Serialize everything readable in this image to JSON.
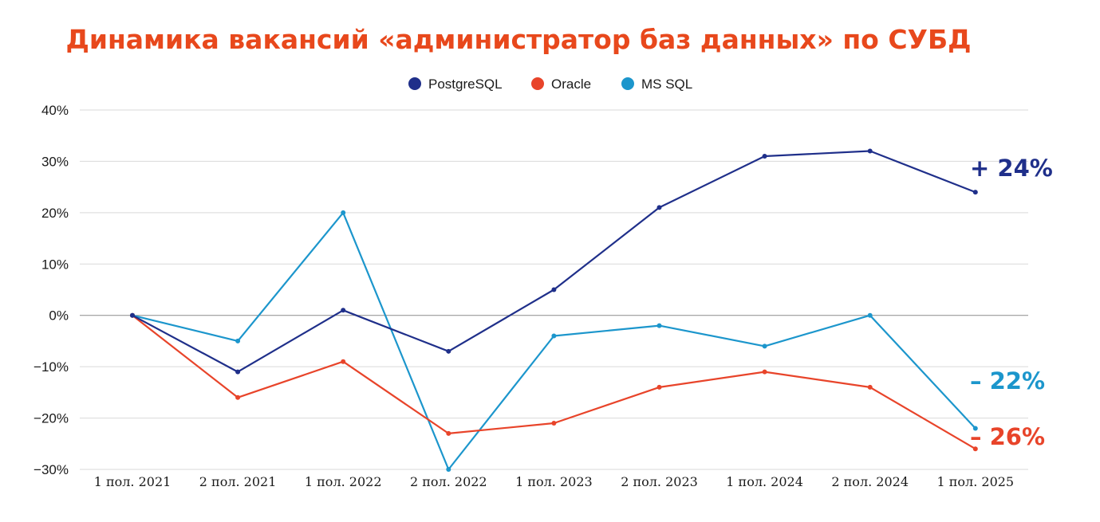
{
  "title": "Динамика вакансий «администратор баз данных» по СУБД",
  "colors": {
    "title": "#e8481c",
    "grid": "#d9d9d9",
    "zero_line": "#8c8c8c",
    "text": "#1a1a1a"
  },
  "chart_data": {
    "type": "line",
    "title": "Динамика вакансий «администратор баз данных» по СУБД",
    "xlabel": "",
    "ylabel": "",
    "categories": [
      "1 пол. 2021",
      "2 пол. 2021",
      "1 пол. 2022",
      "2 пол. 2022",
      "1 пол. 2023",
      "2 пол. 2023",
      "1 пол. 2024",
      "2 пол. 2024",
      "1 пол. 2025"
    ],
    "ylim": [
      -30,
      40
    ],
    "yticks": [
      -30,
      -20,
      -10,
      0,
      10,
      20,
      30,
      40
    ],
    "ytick_labels": [
      "−30%",
      "−20%",
      "−10%",
      "0%",
      "10%",
      "20%",
      "30%",
      "40%"
    ],
    "grid": true,
    "legend_position": "top-center",
    "series": [
      {
        "name": "PostgreSQL",
        "color": "#1f2f8a",
        "values": [
          0,
          -11,
          1,
          -7,
          5,
          21,
          31,
          32,
          24
        ],
        "end_label": "+ 24%"
      },
      {
        "name": "Oracle",
        "color": "#e8442a",
        "values": [
          0,
          -16,
          -9,
          -23,
          -21,
          -14,
          -11,
          -14,
          -26
        ],
        "end_label": "– 26%"
      },
      {
        "name": "MS SQL",
        "color": "#1c96cc",
        "values": [
          0,
          -5,
          20,
          -30,
          -4,
          -2,
          -6,
          0,
          -22
        ],
        "end_label": "– 22%"
      }
    ]
  }
}
